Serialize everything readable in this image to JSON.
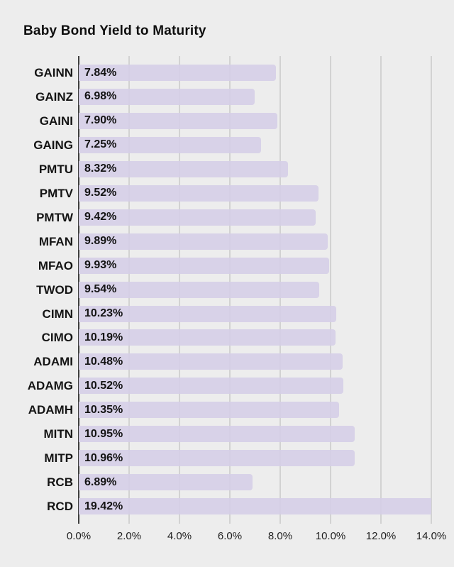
{
  "chart_data": {
    "type": "bar",
    "orientation": "horizontal",
    "title": "Baby Bond Yield to Maturity",
    "categories": [
      "GAINN",
      "GAINZ",
      "GAINI",
      "GAING",
      "PMTU",
      "PMTV",
      "PMTW",
      "MFAN",
      "MFAO",
      "TWOD",
      "CIMN",
      "CIMO",
      "ADAMI",
      "ADAMG",
      "ADAMH",
      "MITN",
      "MITP",
      "RCB",
      "RCD"
    ],
    "values": [
      7.84,
      6.98,
      7.9,
      7.25,
      8.32,
      9.52,
      9.42,
      9.89,
      9.93,
      9.54,
      10.23,
      10.19,
      10.48,
      10.52,
      10.35,
      10.95,
      10.96,
      6.89,
      19.42
    ],
    "value_labels": [
      "7.84%",
      "6.98%",
      "7.90%",
      "7.25%",
      "8.32%",
      "9.52%",
      "9.42%",
      "9.89%",
      "9.93%",
      "9.54%",
      "10.23%",
      "10.19%",
      "10.48%",
      "10.52%",
      "10.35%",
      "10.95%",
      "10.96%",
      "6.89%",
      "19.42%"
    ],
    "xlabel": "",
    "ylabel": "",
    "x_axis": {
      "tick_labels": [
        "0.0%",
        "2.0%",
        "4.0%",
        "6.0%",
        "8.0%",
        "10.0%",
        "12.0%",
        "14.0%"
      ],
      "tick_values": [
        0,
        2,
        4,
        6,
        8,
        10,
        12,
        14
      ],
      "min": 0,
      "max": 14
    },
    "grid": {
      "vertical": true,
      "horizontal": false,
      "zero_line": true
    },
    "legend": null,
    "value_label_position": "inside-left",
    "bars_clipped_at_max": [
      "RCD"
    ],
    "colors": {
      "background": "#ededed",
      "bar": "rgba(213,206,231,0.9)",
      "bar_solid": "#d9d2e9",
      "gridline": "#d2d2d2",
      "zero_line": "#3f3f3f",
      "title_text": "#0e0e0e",
      "label_text": "#141414",
      "tick_text": "#1f1f1f"
    }
  }
}
